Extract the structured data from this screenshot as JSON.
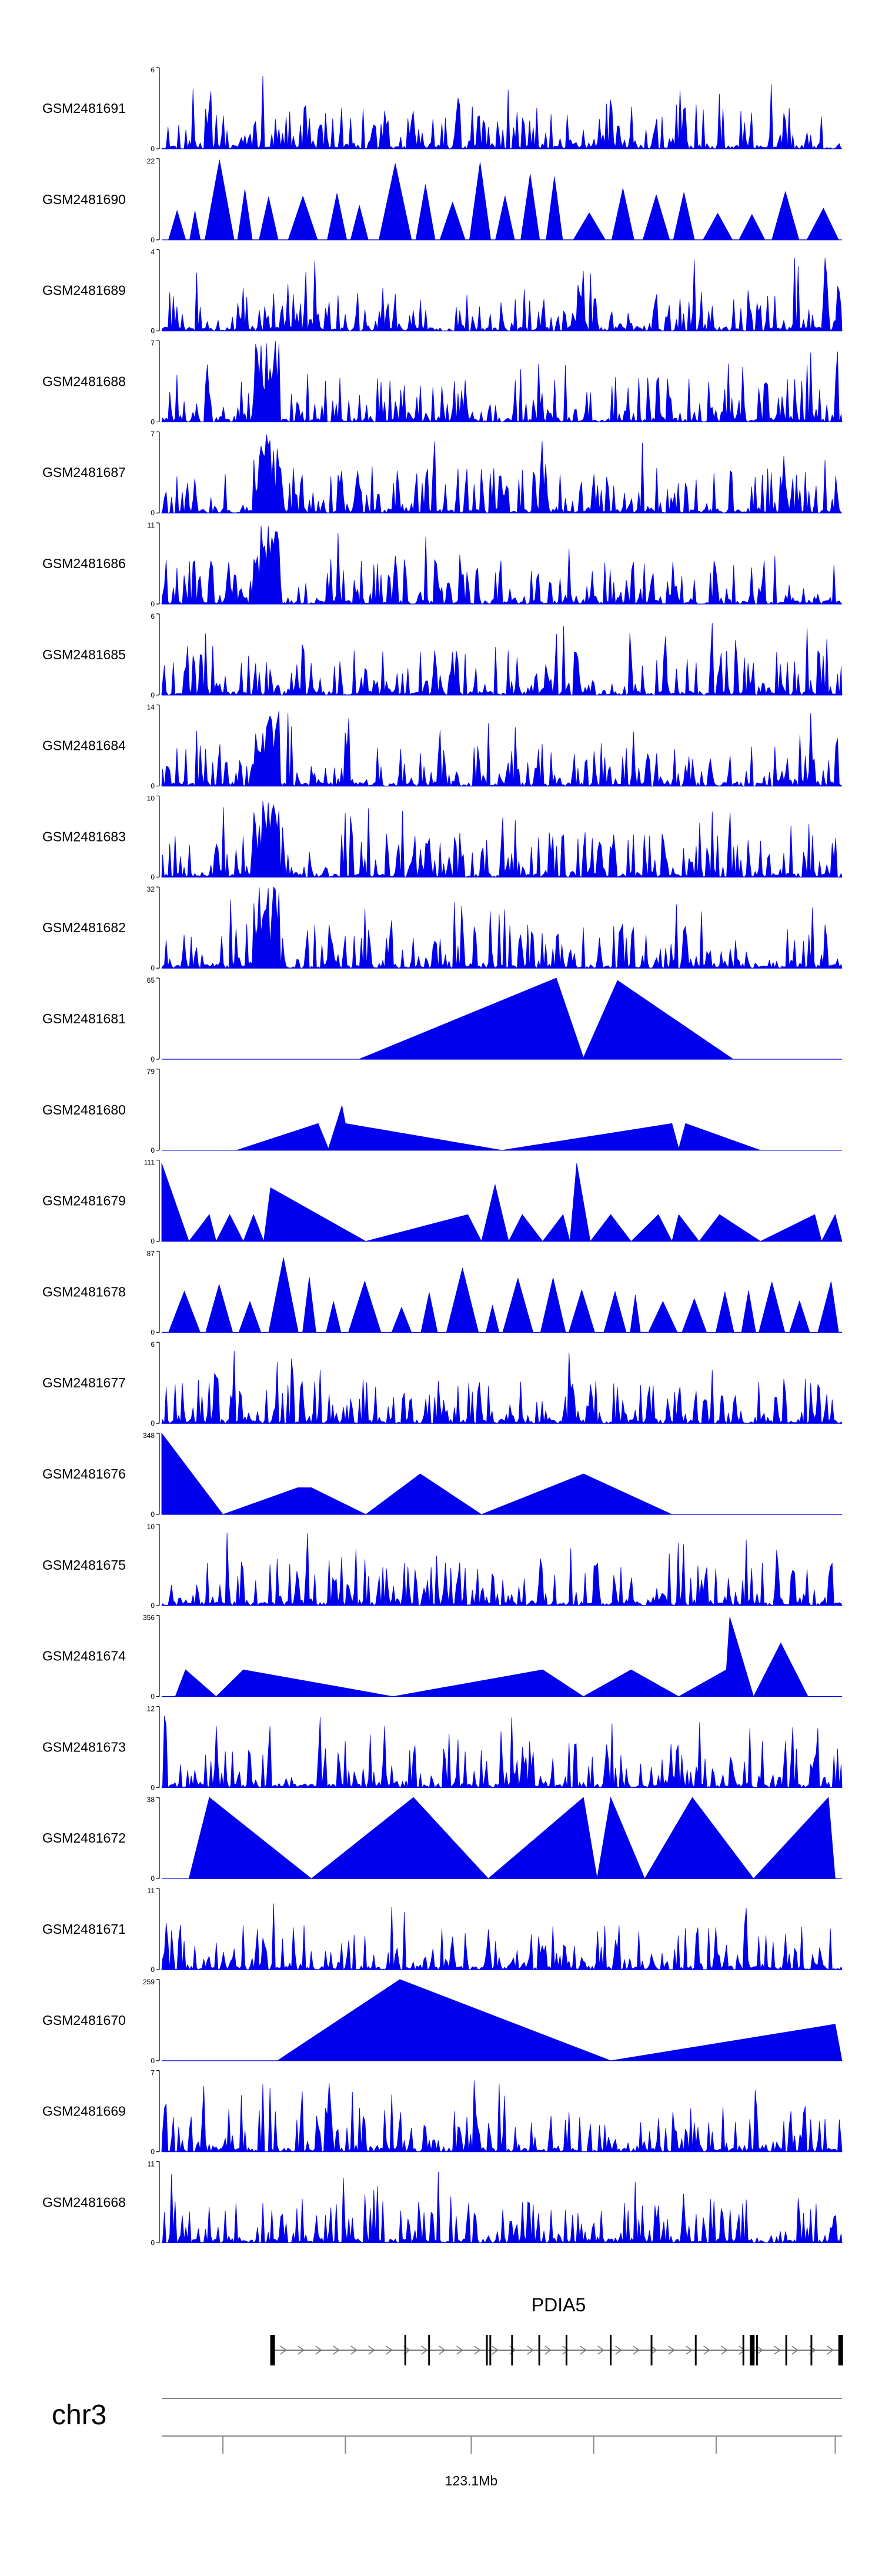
{
  "chart_data": {
    "type": "area",
    "title": "",
    "tracks": [
      {
        "name": "GSM2481691",
        "ymax": "6",
        "ymin": "0",
        "style": "dense"
      },
      {
        "name": "GSM2481690",
        "ymax": "22",
        "ymin": "0",
        "style": "peaks-many"
      },
      {
        "name": "GSM2481689",
        "ymax": "4",
        "ymin": "0",
        "style": "dense"
      },
      {
        "name": "GSM2481688",
        "ymax": "7",
        "ymin": "0",
        "style": "dense-peak"
      },
      {
        "name": "GSM2481687",
        "ymax": "7",
        "ymin": "0",
        "style": "dense-peak"
      },
      {
        "name": "GSM2481686",
        "ymax": "11",
        "ymin": "0",
        "style": "dense-peak"
      },
      {
        "name": "GSM2481685",
        "ymax": "6",
        "ymin": "0",
        "style": "dense"
      },
      {
        "name": "GSM2481684",
        "ymax": "14",
        "ymin": "0",
        "style": "dense-peak"
      },
      {
        "name": "GSM2481683",
        "ymax": "10",
        "ymin": "0",
        "style": "dense-peak"
      },
      {
        "name": "GSM2481682",
        "ymax": "32",
        "ymin": "0",
        "style": "dense-peak"
      },
      {
        "name": "GSM2481681",
        "ymax": "65",
        "ymin": "0",
        "style": "sparse"
      },
      {
        "name": "GSM2481680",
        "ymax": "79",
        "ymin": "0",
        "style": "sparse"
      },
      {
        "name": "GSM2481679",
        "ymax": "111",
        "ymin": "0",
        "style": "sparse"
      },
      {
        "name": "GSM2481678",
        "ymax": "87",
        "ymin": "0",
        "style": "peaks-many"
      },
      {
        "name": "GSM2481677",
        "ymax": "6",
        "ymin": "0",
        "style": "dense"
      },
      {
        "name": "GSM2481676",
        "ymax": "348",
        "ymin": "0",
        "style": "sparse"
      },
      {
        "name": "GSM2481675",
        "ymax": "10",
        "ymin": "0",
        "style": "dense"
      },
      {
        "name": "GSM2481674",
        "ymax": "356",
        "ymin": "0",
        "style": "sparse"
      },
      {
        "name": "GSM2481673",
        "ymax": "12",
        "ymin": "0",
        "style": "dense"
      },
      {
        "name": "GSM2481672",
        "ymax": "38",
        "ymin": "0",
        "style": "sparse"
      },
      {
        "name": "GSM2481671",
        "ymax": "11",
        "ymin": "0",
        "style": "dense"
      },
      {
        "name": "GSM2481670",
        "ymax": "259",
        "ymin": "0",
        "style": "sparse"
      },
      {
        "name": "GSM2481669",
        "ymax": "7",
        "ymin": "0",
        "style": "dense"
      },
      {
        "name": "GSM2481668",
        "ymax": "11",
        "ymin": "0",
        "style": "dense"
      }
    ],
    "sparse_profiles": {
      "GSM2481681": [
        [
          0.29,
          0
        ],
        [
          0.58,
          1.0
        ],
        [
          0.62,
          0.02
        ],
        [
          0.67,
          0.97
        ],
        [
          0.84,
          0
        ]
      ],
      "GSM2481680": [
        [
          0.11,
          0
        ],
        [
          0.23,
          0.33
        ],
        [
          0.245,
          0.02
        ],
        [
          0.265,
          0.55
        ],
        [
          0.27,
          0.33
        ],
        [
          0.5,
          0
        ],
        [
          0.75,
          0.33
        ],
        [
          0.76,
          0.02
        ],
        [
          0.77,
          0.33
        ],
        [
          0.88,
          0
        ]
      ],
      "GSM2481679": [
        [
          0.0,
          0.96
        ],
        [
          0.04,
          0
        ],
        [
          0.07,
          0.33
        ],
        [
          0.08,
          0
        ],
        [
          0.1,
          0.33
        ],
        [
          0.12,
          0
        ],
        [
          0.135,
          0.33
        ],
        [
          0.15,
          0
        ],
        [
          0.16,
          0.66
        ],
        [
          0.3,
          0
        ],
        [
          0.45,
          0.33
        ],
        [
          0.47,
          0
        ],
        [
          0.49,
          0.7
        ],
        [
          0.51,
          0
        ],
        [
          0.53,
          0.33
        ],
        [
          0.56,
          0
        ],
        [
          0.59,
          0.33
        ],
        [
          0.6,
          0
        ],
        [
          0.61,
          0.96
        ],
        [
          0.63,
          0
        ],
        [
          0.66,
          0.33
        ],
        [
          0.69,
          0
        ],
        [
          0.73,
          0.33
        ],
        [
          0.75,
          0
        ],
        [
          0.76,
          0.33
        ],
        [
          0.79,
          0
        ],
        [
          0.82,
          0.33
        ],
        [
          0.88,
          0
        ],
        [
          0.96,
          0.33
        ],
        [
          0.97,
          0
        ],
        [
          0.99,
          0.33
        ],
        [
          1.0,
          0
        ]
      ],
      "GSM2481676": [
        [
          0.0,
          1.0
        ],
        [
          0.09,
          0
        ],
        [
          0.2,
          0.33
        ],
        [
          0.22,
          0.33
        ],
        [
          0.3,
          0
        ],
        [
          0.38,
          0.5
        ],
        [
          0.47,
          0.0
        ],
        [
          0.62,
          0.5
        ],
        [
          0.75,
          0
        ]
      ],
      "GSM2481674": [
        [
          0.02,
          0
        ],
        [
          0.035,
          0.33
        ],
        [
          0.08,
          0
        ],
        [
          0.12,
          0.33
        ],
        [
          0.34,
          0
        ],
        [
          0.56,
          0.33
        ],
        [
          0.62,
          0
        ],
        [
          0.69,
          0.33
        ],
        [
          0.76,
          0
        ],
        [
          0.83,
          0.33
        ],
        [
          0.835,
          0.98
        ],
        [
          0.87,
          0
        ],
        [
          0.91,
          0.66
        ],
        [
          0.95,
          0
        ]
      ],
      "GSM2481672": [
        [
          0.04,
          0
        ],
        [
          0.07,
          1.0
        ],
        [
          0.22,
          0
        ],
        [
          0.37,
          1.0
        ],
        [
          0.48,
          0
        ],
        [
          0.62,
          1.0
        ],
        [
          0.64,
          0
        ],
        [
          0.66,
          1.0
        ],
        [
          0.71,
          0
        ],
        [
          0.78,
          1.0
        ],
        [
          0.87,
          0
        ],
        [
          0.98,
          1.0
        ],
        [
          0.99,
          0
        ]
      ],
      "GSM2481670": [
        [
          0.17,
          0
        ],
        [
          0.35,
          1.0
        ],
        [
          0.66,
          0
        ],
        [
          0.99,
          0.45
        ],
        [
          1.0,
          0
        ]
      ]
    },
    "peak_region": [
      0.135,
      0.175
    ],
    "gene": {
      "name": "PDIA5",
      "strand": "+",
      "start": 0.163,
      "end": 1.0,
      "exons": [
        0.163,
        0.358,
        0.393,
        0.478,
        0.483,
        0.515,
        0.555,
        0.595,
        0.66,
        0.72,
        0.785,
        0.855,
        0.868,
        0.875,
        0.918,
        0.955,
        0.998
      ]
    },
    "chromosome": "chr3",
    "axis": {
      "label": "123.1Mb",
      "label_position": 0.455,
      "ticks": [
        0.09,
        0.27,
        0.455,
        0.635,
        0.815,
        0.99
      ]
    }
  }
}
